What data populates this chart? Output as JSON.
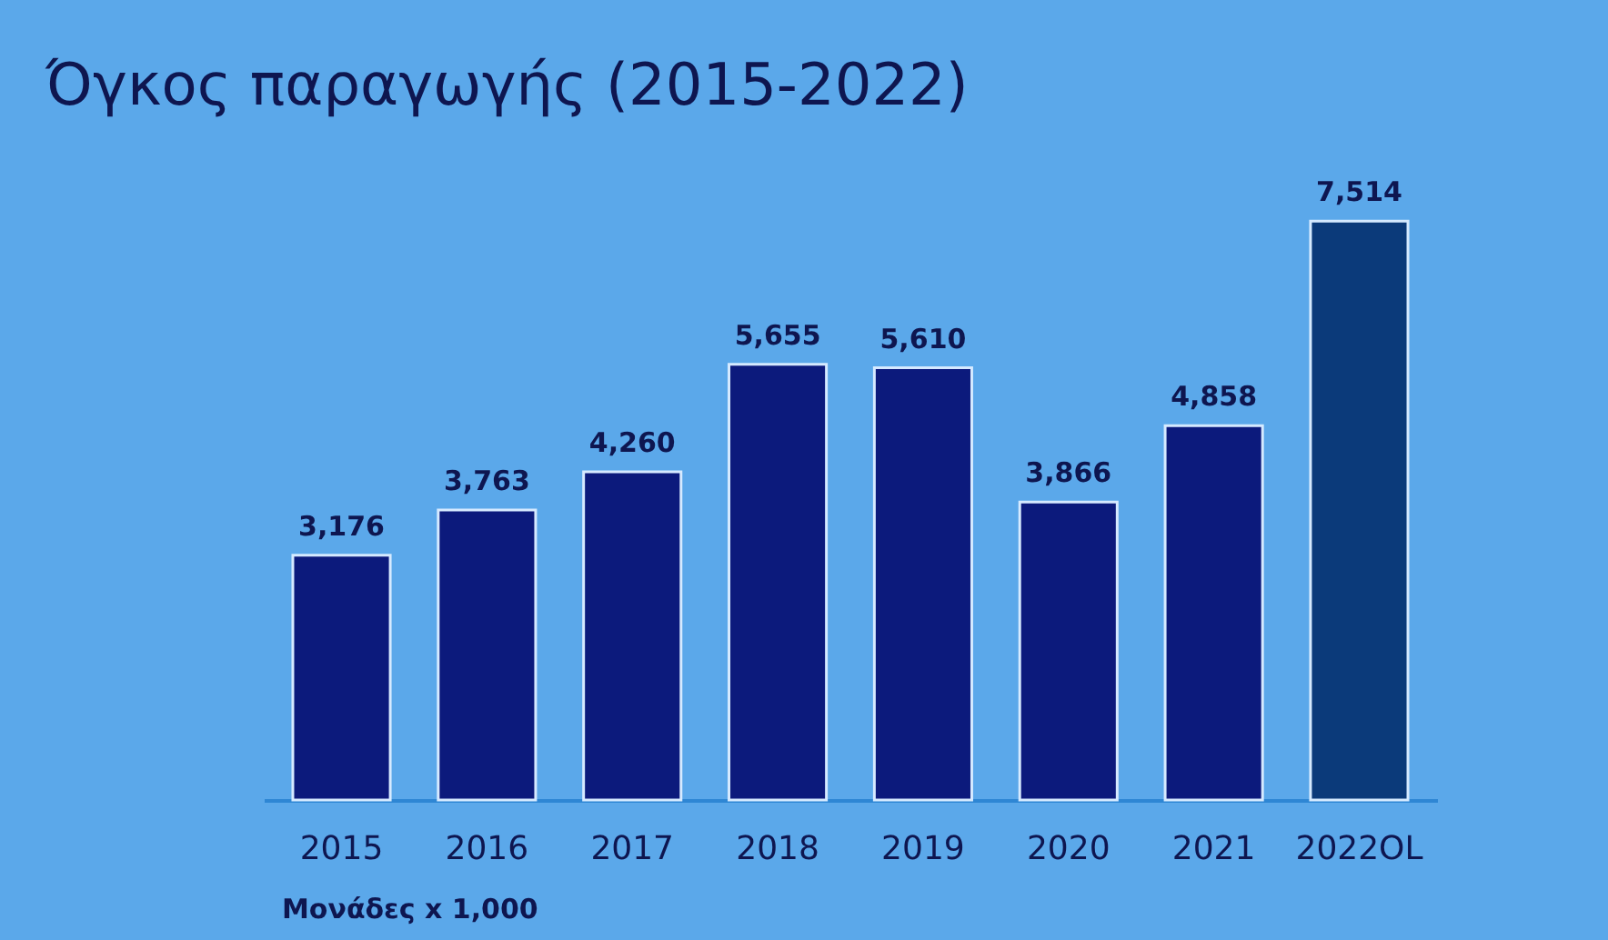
{
  "chart_data": {
    "type": "bar",
    "title": "Όγκος παραγωγής (2015-2022)",
    "categories": [
      "2015",
      "2016",
      "2017",
      "2018",
      "2019",
      "2020",
      "2021",
      "2022OL"
    ],
    "values": [
      3176,
      3763,
      4260,
      5655,
      5610,
      3866,
      4858,
      7514
    ],
    "colors": [
      "#0c1a7c",
      "#0c1a7c",
      "#0c1a7c",
      "#0c1a7c",
      "#0c1a7c",
      "#0c1a7c",
      "#0c1a7c",
      "#0b3a7a"
    ],
    "value_labels": [
      "3,176",
      "3,763",
      "4,260",
      "5,655",
      "5,610",
      "3,866",
      "4,858",
      "7,514"
    ],
    "tick_labels": "x",
    "annotations": [
      "Μονάδες x 1,000"
    ]
  }
}
